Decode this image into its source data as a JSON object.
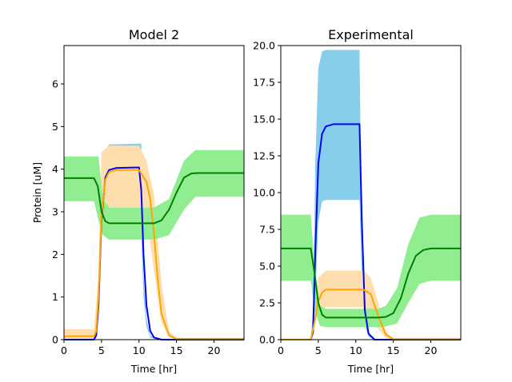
{
  "chart_data": [
    {
      "type": "line",
      "title": "Model 2",
      "xlabel": "Time [hr]",
      "ylabel": "Protein [uM]",
      "xlim": [
        0,
        24
      ],
      "ylim": [
        0,
        6.9
      ],
      "xticks": [
        0,
        5,
        10,
        15,
        20
      ],
      "yticks": [
        0,
        1,
        2,
        3,
        4,
        5,
        6
      ],
      "ytick_labels": [
        "0",
        "1",
        "2",
        "3",
        "4",
        "5",
        "6"
      ],
      "grid": false,
      "bands": [
        {
          "color": "#87ceeb",
          "x": [
            0,
            4.0,
            4.6,
            5.0,
            6.0,
            10.0,
            10.3,
            10.6,
            11.0,
            11.5,
            12.5,
            24
          ],
          "low": [
            0,
            0,
            0.5,
            2.5,
            3.95,
            3.95,
            2.5,
            1.0,
            0.3,
            0.05,
            0,
            0
          ],
          "high": [
            0,
            0,
            1.2,
            4.3,
            4.58,
            4.6,
            4.6,
            1.5,
            0.5,
            0.1,
            0,
            0
          ]
        },
        {
          "color": "#ffdead",
          "x": [
            0,
            4.0,
            4.6,
            5.0,
            6.0,
            10.0,
            11.0,
            12.0,
            13.0,
            14.0,
            15.0,
            24
          ],
          "low": [
            0,
            0,
            0.5,
            2.6,
            3.1,
            3.1,
            2.9,
            1.6,
            0.4,
            0.05,
            0,
            0
          ],
          "high": [
            0.25,
            0.25,
            1.5,
            4.4,
            4.55,
            4.55,
            4.2,
            3.4,
            1.3,
            0.2,
            0.03,
            0.03
          ]
        },
        {
          "color": "#90ee90",
          "x": [
            0,
            4.0,
            4.6,
            5.2,
            6.0,
            10.0,
            12.0,
            14.0,
            16.0,
            17.5,
            24
          ],
          "low": [
            3.25,
            3.25,
            2.8,
            2.45,
            2.35,
            2.35,
            2.35,
            2.45,
            3.05,
            3.35,
            3.35
          ],
          "high": [
            4.3,
            4.3,
            4.3,
            3.3,
            3.1,
            3.1,
            3.1,
            3.3,
            4.2,
            4.45,
            4.45
          ]
        }
      ],
      "series": [
        {
          "color": "#0000ff",
          "x": [
            0,
            4.0,
            4.3,
            4.6,
            5.0,
            5.5,
            6.0,
            7.0,
            10.0,
            10.3,
            10.6,
            11.0,
            11.5,
            12.0,
            13.0,
            24
          ],
          "y": [
            0,
            0,
            0.1,
            0.8,
            2.8,
            3.8,
            3.98,
            4.03,
            4.04,
            3.5,
            2.0,
            0.8,
            0.2,
            0.05,
            0,
            0
          ]
        },
        {
          "color": "#ffa500",
          "x": [
            0,
            4.0,
            4.3,
            4.6,
            5.0,
            5.5,
            6.0,
            7.0,
            10.0,
            11.0,
            11.5,
            12.0,
            12.5,
            13.0,
            14.0,
            15.0,
            24
          ],
          "y": [
            0.08,
            0.08,
            0.2,
            1.0,
            2.9,
            3.75,
            3.93,
            3.98,
            3.98,
            3.7,
            3.3,
            2.5,
            1.4,
            0.6,
            0.1,
            0.02,
            0.02
          ]
        },
        {
          "color": "#008000",
          "x": [
            0,
            4.0,
            4.5,
            5.0,
            5.5,
            6.0,
            10.0,
            12.0,
            13.0,
            14.0,
            15.0,
            16.0,
            17.0,
            18.0,
            24
          ],
          "y": [
            3.79,
            3.79,
            3.6,
            3.0,
            2.78,
            2.73,
            2.73,
            2.73,
            2.8,
            3.05,
            3.45,
            3.8,
            3.9,
            3.91,
            3.91
          ]
        }
      ]
    },
    {
      "type": "line",
      "title": "Experimental",
      "xlabel": "Time [hr]",
      "ylabel": "",
      "xlim": [
        0,
        24
      ],
      "ylim": [
        0,
        20
      ],
      "xticks": [
        0,
        5,
        10,
        15,
        20
      ],
      "yticks": [
        0,
        2.5,
        5,
        7.5,
        10,
        12.5,
        15,
        17.5,
        20
      ],
      "ytick_labels": [
        "0.0",
        "2.5",
        "5.0",
        "7.5",
        "10.0",
        "12.5",
        "15.0",
        "17.5",
        "20.0"
      ],
      "grid": false,
      "bands": [
        {
          "color": "#87ceeb",
          "x": [
            0,
            4.0,
            4.3,
            4.6,
            5.0,
            5.5,
            6.0,
            10.5,
            10.8,
            11.2,
            11.7,
            12.5,
            24
          ],
          "low": [
            0,
            0,
            0.5,
            3.0,
            8.0,
            9.4,
            9.5,
            9.5,
            4.0,
            1.0,
            0.2,
            0,
            0
          ],
          "high": [
            0,
            0,
            2.0,
            12.0,
            18.5,
            19.6,
            19.7,
            19.7,
            6.0,
            2.0,
            0.5,
            0,
            0
          ]
        },
        {
          "color": "#ffdead",
          "x": [
            0,
            4.0,
            4.5,
            5.0,
            6.0,
            11.0,
            12.0,
            13.0,
            14.0,
            15.0,
            24
          ],
          "low": [
            0,
            0,
            1.0,
            2.0,
            2.2,
            2.2,
            1.8,
            0.7,
            0.1,
            0,
            0
          ],
          "high": [
            0,
            0,
            2.0,
            4.2,
            4.7,
            4.7,
            4.2,
            2.5,
            0.6,
            0.05,
            0.05
          ]
        },
        {
          "color": "#90ee90",
          "x": [
            0,
            4.0,
            4.5,
            5.2,
            6.0,
            10.0,
            13.0,
            14.0,
            15.5,
            17.0,
            18.5,
            20.0,
            24
          ],
          "low": [
            4.0,
            4.0,
            2.0,
            0.95,
            0.85,
            0.85,
            0.85,
            0.9,
            1.1,
            2.5,
            3.8,
            4.0,
            4.0
          ],
          "high": [
            8.5,
            8.5,
            5.0,
            2.3,
            2.1,
            2.1,
            2.1,
            2.3,
            3.5,
            6.5,
            8.3,
            8.5,
            8.5
          ]
        }
      ],
      "series": [
        {
          "color": "#0000ff",
          "x": [
            0,
            4.0,
            4.3,
            4.6,
            5.0,
            5.5,
            6.0,
            7.0,
            10.5,
            10.8,
            11.2,
            11.7,
            12.5,
            24
          ],
          "y": [
            0,
            0,
            0.5,
            6.0,
            12.0,
            14.0,
            14.5,
            14.65,
            14.65,
            8.0,
            2.0,
            0.4,
            0,
            0
          ]
        },
        {
          "color": "#ffa500",
          "x": [
            0,
            4.0,
            4.5,
            5.0,
            5.5,
            6.0,
            11.0,
            12.0,
            13.0,
            14.0,
            15.0,
            24
          ],
          "y": [
            0,
            0,
            1.2,
            2.6,
            3.2,
            3.4,
            3.4,
            3.1,
            1.6,
            0.35,
            0.03,
            0.03
          ]
        },
        {
          "color": "#008000",
          "x": [
            0,
            4.0,
            4.5,
            5.0,
            5.5,
            6.0,
            13.0,
            14.0,
            15.0,
            16.0,
            17.0,
            18.0,
            19.0,
            20.0,
            24
          ],
          "y": [
            6.2,
            6.2,
            4.5,
            2.5,
            1.7,
            1.5,
            1.5,
            1.55,
            1.8,
            2.8,
            4.5,
            5.7,
            6.1,
            6.2,
            6.2
          ]
        }
      ]
    }
  ]
}
